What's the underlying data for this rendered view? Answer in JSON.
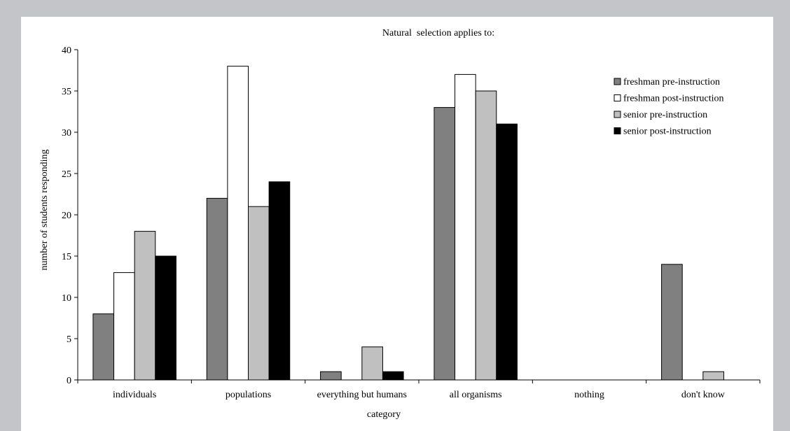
{
  "chart_data": {
    "type": "bar",
    "title": "Natural  selection applies to:",
    "xlabel": "category",
    "ylabel": "number of students responding",
    "categories": [
      "individuals",
      "populations",
      "everything but humans",
      "all organisms",
      "nothing",
      "don't know"
    ],
    "series": [
      {
        "name": "freshman pre-instruction",
        "color": "#808080",
        "values": [
          8,
          22,
          1,
          33,
          0,
          14
        ]
      },
      {
        "name": "freshman post-instruction",
        "color": "#ffffff",
        "values": [
          13,
          38,
          0,
          37,
          0,
          0
        ]
      },
      {
        "name": "senior pre-instruction",
        "color": "#c0c0c0",
        "values": [
          18,
          21,
          4,
          35,
          0,
          1
        ]
      },
      {
        "name": "senior post-instruction",
        "color": "#000000",
        "values": [
          15,
          24,
          1,
          31,
          0,
          0
        ]
      }
    ],
    "ylim": [
      0,
      40
    ],
    "yticks": [
      0,
      5,
      10,
      15,
      20,
      25,
      30,
      35,
      40
    ],
    "grid": false,
    "legend_position": "top-right"
  }
}
